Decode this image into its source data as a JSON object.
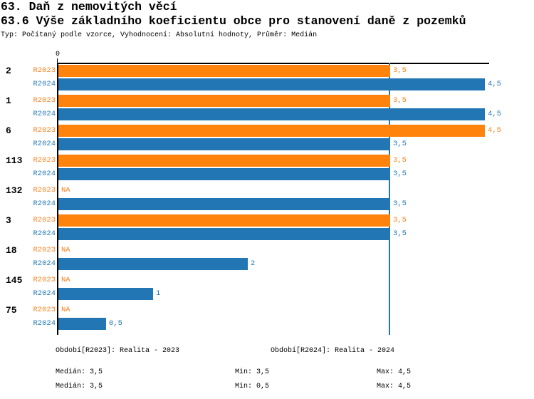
{
  "header": {
    "title": "63. Daň z nemovitých věcí",
    "subtitle": "63.6 Výše základního koeficientu obce pro stanovení daně z pozemků",
    "meta": "Typ: Počítaný podle vzorce, Vyhodnocení: Absolutní hodnoty, Průměr: Medián"
  },
  "colors": {
    "orange_bar": "#FF830D",
    "orange_text": "#F5821E",
    "blue_bar": "#2276B4",
    "blue_text": "#2277B4",
    "axis": "#000000"
  },
  "chart": {
    "zero_label": "0",
    "na_label": "NA"
  },
  "chart_data": {
    "type": "bar",
    "orientation": "horizontal",
    "title": "63.6 Výše základního koeficientu obce pro stanovení daně z pozemků",
    "categories": [
      "2",
      "1",
      "6",
      "113",
      "132",
      "3",
      "18",
      "145",
      "75"
    ],
    "series": [
      {
        "name": "R2023",
        "values": [
          3.5,
          3.5,
          4.5,
          3.5,
          null,
          3.5,
          null,
          null,
          null
        ],
        "display": [
          "3,5",
          "3,5",
          "4,5",
          "3,5",
          "NA",
          "3,5",
          "NA",
          "NA",
          "NA"
        ]
      },
      {
        "name": "R2024",
        "values": [
          4.5,
          4.5,
          3.5,
          3.5,
          3.5,
          3.5,
          2,
          1,
          0.5
        ],
        "display": [
          "4,5",
          "4,5",
          "3,5",
          "3,5",
          "3,5",
          "3,5",
          "2",
          "1",
          "0,5"
        ]
      }
    ],
    "xlim": [
      0,
      4.5
    ],
    "median_reference_line": 3.5,
    "legend_position": "bottom",
    "grid": false
  },
  "footer": {
    "legend_r2023": "Období[R2023]: Realita - 2023",
    "legend_r2024": "Období[R2024]: Realita - 2024",
    "stats_r2023": {
      "median": "Medián: 3,5",
      "min": "Min: 3,5",
      "max": "Max: 4,5"
    },
    "stats_r2024": {
      "median": "Medián: 3,5",
      "min": "Min: 0,5",
      "max": "Max: 4,5"
    }
  }
}
